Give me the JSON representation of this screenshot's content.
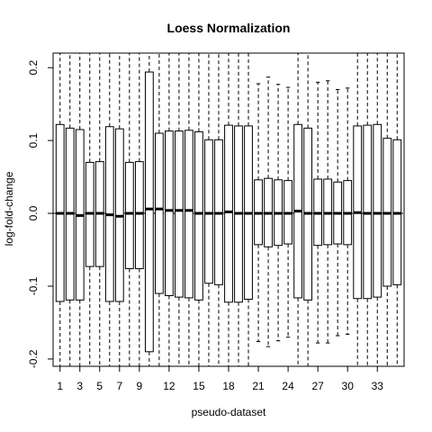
{
  "chart_data": {
    "type": "boxplot",
    "title": "Loess Normalization",
    "xlabel": "pseudo-dataset",
    "ylabel": "log-fold-change",
    "ylim": [
      -0.21,
      0.22
    ],
    "xlim": [
      0.3,
      35.7
    ],
    "y_ticks": [
      -0.2,
      -0.1,
      0.0,
      0.1,
      0.2
    ],
    "y_tick_labels": [
      "-0.2",
      "-0.1",
      "0.0",
      "0.1",
      "0.2"
    ],
    "x_ticks": [
      1,
      3,
      5,
      7,
      9,
      12,
      15,
      18,
      21,
      24,
      27,
      30,
      33
    ],
    "x_tick_labels": [
      "1",
      "3",
      "5",
      "7",
      "9",
      "12",
      "15",
      "18",
      "21",
      "24",
      "27",
      "30",
      "33"
    ],
    "reference_line": 0,
    "boxes": [
      {
        "x": 1,
        "q1": -0.121,
        "median": 0.0,
        "q3": 0.122,
        "whisker_low": -0.21,
        "whisker_high": 0.22
      },
      {
        "x": 2,
        "q1": -0.119,
        "median": 0.0,
        "q3": 0.117,
        "whisker_low": -0.21,
        "whisker_high": 0.22
      },
      {
        "x": 3,
        "q1": -0.119,
        "median": -0.003,
        "q3": 0.115,
        "whisker_low": -0.21,
        "whisker_high": 0.22
      },
      {
        "x": 4,
        "q1": -0.073,
        "median": 0.0,
        "q3": 0.07,
        "whisker_low": -0.21,
        "whisker_high": 0.22
      },
      {
        "x": 5,
        "q1": -0.073,
        "median": 0.0,
        "q3": 0.071,
        "whisker_low": -0.21,
        "whisker_high": 0.22
      },
      {
        "x": 6,
        "q1": -0.121,
        "median": -0.002,
        "q3": 0.119,
        "whisker_low": -0.21,
        "whisker_high": 0.22
      },
      {
        "x": 7,
        "q1": -0.121,
        "median": -0.004,
        "q3": 0.116,
        "whisker_low": -0.21,
        "whisker_high": 0.22
      },
      {
        "x": 8,
        "q1": -0.076,
        "median": 0.0,
        "q3": 0.07,
        "whisker_low": -0.21,
        "whisker_high": 0.22
      },
      {
        "x": 9,
        "q1": -0.076,
        "median": 0.0,
        "q3": 0.071,
        "whisker_low": -0.21,
        "whisker_high": 0.22
      },
      {
        "x": 10,
        "q1": -0.19,
        "median": 0.006,
        "q3": 0.194,
        "whisker_low": -0.21,
        "whisker_high": 0.22
      },
      {
        "x": 11,
        "q1": -0.11,
        "median": 0.006,
        "q3": 0.11,
        "whisker_low": -0.21,
        "whisker_high": 0.22
      },
      {
        "x": 12,
        "q1": -0.113,
        "median": 0.004,
        "q3": 0.113,
        "whisker_low": -0.21,
        "whisker_high": 0.22
      },
      {
        "x": 13,
        "q1": -0.115,
        "median": 0.004,
        "q3": 0.113,
        "whisker_low": -0.21,
        "whisker_high": 0.22
      },
      {
        "x": 14,
        "q1": -0.116,
        "median": 0.004,
        "q3": 0.114,
        "whisker_low": -0.21,
        "whisker_high": 0.22
      },
      {
        "x": 15,
        "q1": -0.119,
        "median": 0.0,
        "q3": 0.112,
        "whisker_low": -0.21,
        "whisker_high": 0.22
      },
      {
        "x": 16,
        "q1": -0.096,
        "median": 0.0,
        "q3": 0.101,
        "whisker_low": -0.21,
        "whisker_high": 0.22
      },
      {
        "x": 17,
        "q1": -0.098,
        "median": 0.0,
        "q3": 0.101,
        "whisker_low": -0.21,
        "whisker_high": 0.22
      },
      {
        "x": 18,
        "q1": -0.122,
        "median": 0.002,
        "q3": 0.121,
        "whisker_low": -0.21,
        "whisker_high": 0.22
      },
      {
        "x": 19,
        "q1": -0.122,
        "median": 0.0,
        "q3": 0.12,
        "whisker_low": -0.21,
        "whisker_high": 0.22
      },
      {
        "x": 20,
        "q1": -0.118,
        "median": 0.0,
        "q3": 0.12,
        "whisker_low": -0.21,
        "whisker_high": 0.22
      },
      {
        "x": 21,
        "q1": -0.043,
        "median": 0.0,
        "q3": 0.046,
        "whisker_low": -0.176,
        "whisker_high": 0.178
      },
      {
        "x": 22,
        "q1": -0.046,
        "median": 0.0,
        "q3": 0.048,
        "whisker_low": -0.183,
        "whisker_high": 0.187
      },
      {
        "x": 23,
        "q1": -0.044,
        "median": 0.0,
        "q3": 0.046,
        "whisker_low": -0.175,
        "whisker_high": 0.177
      },
      {
        "x": 24,
        "q1": -0.042,
        "median": 0.0,
        "q3": 0.045,
        "whisker_low": -0.17,
        "whisker_high": 0.173
      },
      {
        "x": 25,
        "q1": -0.116,
        "median": 0.003,
        "q3": 0.122,
        "whisker_low": -0.21,
        "whisker_high": 0.22
      },
      {
        "x": 26,
        "q1": -0.119,
        "median": 0.0,
        "q3": 0.117,
        "whisker_low": -0.21,
        "whisker_high": 0.22
      },
      {
        "x": 27,
        "q1": -0.044,
        "median": 0.0,
        "q3": 0.047,
        "whisker_low": -0.178,
        "whisker_high": 0.18
      },
      {
        "x": 28,
        "q1": -0.043,
        "median": 0.0,
        "q3": 0.047,
        "whisker_low": -0.178,
        "whisker_high": 0.182
      },
      {
        "x": 29,
        "q1": -0.042,
        "median": 0.0,
        "q3": 0.043,
        "whisker_low": -0.168,
        "whisker_high": 0.17
      },
      {
        "x": 30,
        "q1": -0.043,
        "median": 0.0,
        "q3": 0.045,
        "whisker_low": -0.166,
        "whisker_high": 0.172
      },
      {
        "x": 31,
        "q1": -0.117,
        "median": 0.001,
        "q3": 0.12,
        "whisker_low": -0.21,
        "whisker_high": 0.22
      },
      {
        "x": 32,
        "q1": -0.117,
        "median": 0.0,
        "q3": 0.121,
        "whisker_low": -0.21,
        "whisker_high": 0.22
      },
      {
        "x": 33,
        "q1": -0.115,
        "median": 0.0,
        "q3": 0.122,
        "whisker_low": -0.21,
        "whisker_high": 0.22
      },
      {
        "x": 34,
        "q1": -0.1,
        "median": 0.0,
        "q3": 0.103,
        "whisker_low": -0.21,
        "whisker_high": 0.22
      },
      {
        "x": 35,
        "q1": -0.098,
        "median": 0.0,
        "q3": 0.101,
        "whisker_low": -0.21,
        "whisker_high": 0.22
      }
    ]
  }
}
